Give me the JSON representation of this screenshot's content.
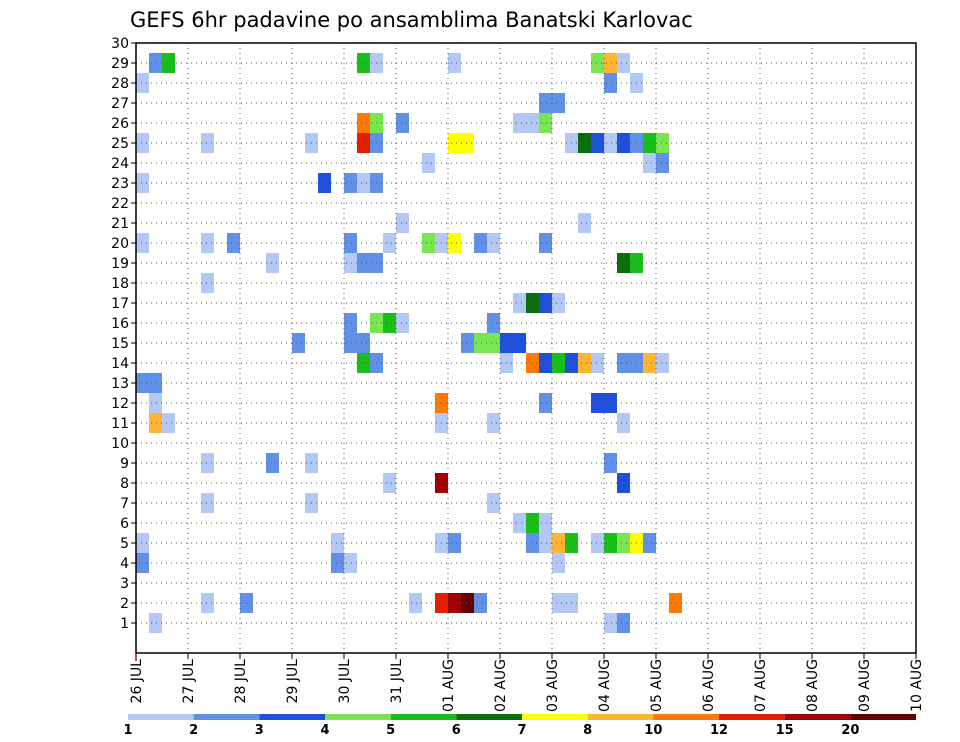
{
  "chart_data": {
    "type": "heatmap",
    "title": "GEFS 6hr padavine po ansamblima Banatski Karlovac",
    "x_tick_labels": [
      "26 JUL",
      "27 JUL",
      "28 JUL",
      "29 JUL",
      "30 JUL",
      "31 JUL",
      "01 AUG",
      "02 AUG",
      "03 AUG",
      "04 AUG",
      "05 AUG",
      "06 AUG",
      "07 AUG",
      "08 AUG",
      "09 AUG",
      "10 AUG"
    ],
    "x_range_steps": [
      0,
      60
    ],
    "y_tick_labels": [
      "1",
      "2",
      "3",
      "4",
      "5",
      "6",
      "7",
      "8",
      "9",
      "10",
      "11",
      "12",
      "13",
      "14",
      "15",
      "16",
      "17",
      "18",
      "19",
      "20",
      "21",
      "22",
      "23",
      "24",
      "25",
      "26",
      "27",
      "28",
      "29",
      "30"
    ],
    "y_range": [
      0,
      30
    ],
    "grid": true,
    "legend": {
      "position": "bottom",
      "boundaries": [
        "1",
        "2",
        "3",
        "4",
        "5",
        "6",
        "7",
        "8",
        "10",
        "12",
        "15",
        "20"
      ],
      "colors": [
        "#b4c8f5",
        "#6090e8",
        "#1e50dc",
        "#78e650",
        "#19be19",
        "#0a6e0a",
        "#ffff00",
        "#ffb432",
        "#ff7800",
        "#e61e00",
        "#a00000",
        "#640000"
      ]
    },
    "cells": [
      [
        1,
        29,
        2
      ],
      [
        2,
        29,
        5
      ],
      [
        17,
        29,
        5
      ],
      [
        18,
        29,
        1
      ],
      [
        24,
        29,
        1
      ],
      [
        35,
        29,
        4
      ],
      [
        36,
        29,
        8
      ],
      [
        37,
        29,
        1
      ],
      [
        0,
        28,
        1
      ],
      [
        36,
        28,
        2
      ],
      [
        38,
        28,
        1
      ],
      [
        31,
        27,
        2
      ],
      [
        32,
        27,
        2
      ],
      [
        17,
        26,
        9
      ],
      [
        18,
        26,
        4
      ],
      [
        20,
        26,
        2
      ],
      [
        29,
        26,
        1
      ],
      [
        30,
        26,
        1
      ],
      [
        31,
        26,
        4
      ],
      [
        0,
        25,
        1
      ],
      [
        5,
        25,
        1
      ],
      [
        13,
        25,
        1
      ],
      [
        17,
        25,
        10
      ],
      [
        18,
        25,
        2
      ],
      [
        24,
        25,
        7
      ],
      [
        25,
        25,
        7
      ],
      [
        33,
        25,
        1
      ],
      [
        34,
        25,
        6
      ],
      [
        35,
        25,
        3
      ],
      [
        36,
        25,
        1
      ],
      [
        37,
        25,
        3
      ],
      [
        38,
        25,
        2
      ],
      [
        39,
        25,
        5
      ],
      [
        40,
        25,
        4
      ],
      [
        22,
        24,
        1
      ],
      [
        39,
        24,
        1
      ],
      [
        40,
        24,
        2
      ],
      [
        0,
        23,
        1
      ],
      [
        14,
        23,
        3
      ],
      [
        16,
        23,
        2
      ],
      [
        17,
        23,
        1
      ],
      [
        18,
        23,
        2
      ],
      [
        20,
        21,
        1
      ],
      [
        34,
        21,
        1
      ],
      [
        0,
        20,
        1
      ],
      [
        5,
        20,
        1
      ],
      [
        7,
        20,
        2
      ],
      [
        16,
        20,
        2
      ],
      [
        19,
        20,
        1
      ],
      [
        22,
        20,
        4
      ],
      [
        23,
        20,
        1
      ],
      [
        24,
        20,
        7
      ],
      [
        26,
        20,
        2
      ],
      [
        27,
        20,
        1
      ],
      [
        31,
        20,
        2
      ],
      [
        10,
        19,
        1
      ],
      [
        16,
        19,
        1
      ],
      [
        17,
        19,
        2
      ],
      [
        18,
        19,
        2
      ],
      [
        37,
        19,
        6
      ],
      [
        38,
        19,
        5
      ],
      [
        5,
        18,
        1
      ],
      [
        29,
        17,
        1
      ],
      [
        30,
        17,
        6
      ],
      [
        31,
        17,
        3
      ],
      [
        32,
        17,
        1
      ],
      [
        16,
        16,
        2
      ],
      [
        18,
        16,
        4
      ],
      [
        19,
        16,
        5
      ],
      [
        20,
        16,
        1
      ],
      [
        27,
        16,
        2
      ],
      [
        12,
        15,
        2
      ],
      [
        16,
        15,
        2
      ],
      [
        17,
        15,
        2
      ],
      [
        25,
        15,
        2
      ],
      [
        26,
        15,
        4
      ],
      [
        27,
        15,
        4
      ],
      [
        28,
        15,
        3
      ],
      [
        29,
        15,
        3
      ],
      [
        17,
        14,
        5
      ],
      [
        18,
        14,
        2
      ],
      [
        28,
        14,
        1
      ],
      [
        30,
        14,
        9
      ],
      [
        31,
        14,
        3
      ],
      [
        32,
        14,
        5
      ],
      [
        33,
        14,
        3
      ],
      [
        34,
        14,
        8
      ],
      [
        35,
        14,
        1
      ],
      [
        37,
        14,
        2
      ],
      [
        38,
        14,
        2
      ],
      [
        39,
        14,
        8
      ],
      [
        40,
        14,
        1
      ],
      [
        0,
        13,
        2
      ],
      [
        1,
        13,
        2
      ],
      [
        1,
        12,
        1
      ],
      [
        23,
        12,
        9
      ],
      [
        31,
        12,
        2
      ],
      [
        35,
        12,
        3
      ],
      [
        36,
        12,
        3
      ],
      [
        1,
        11,
        8
      ],
      [
        2,
        11,
        1
      ],
      [
        23,
        11,
        1
      ],
      [
        27,
        11,
        1
      ],
      [
        37,
        11,
        1
      ],
      [
        5,
        9,
        1
      ],
      [
        10,
        9,
        2
      ],
      [
        13,
        9,
        1
      ],
      [
        36,
        9,
        2
      ],
      [
        19,
        8,
        1
      ],
      [
        23,
        8,
        11
      ],
      [
        37,
        8,
        3
      ],
      [
        5,
        7,
        1
      ],
      [
        13,
        7,
        1
      ],
      [
        27,
        7,
        1
      ],
      [
        29,
        6,
        1
      ],
      [
        30,
        6,
        5
      ],
      [
        31,
        6,
        1
      ],
      [
        0,
        5,
        1
      ],
      [
        15,
        5,
        1
      ],
      [
        23,
        5,
        1
      ],
      [
        24,
        5,
        2
      ],
      [
        30,
        5,
        2
      ],
      [
        31,
        5,
        1
      ],
      [
        32,
        5,
        8
      ],
      [
        33,
        5,
        5
      ],
      [
        35,
        5,
        1
      ],
      [
        36,
        5,
        5
      ],
      [
        37,
        5,
        4
      ],
      [
        38,
        5,
        7
      ],
      [
        39,
        5,
        2
      ],
      [
        0,
        4,
        2
      ],
      [
        15,
        4,
        2
      ],
      [
        16,
        4,
        1
      ],
      [
        32,
        4,
        1
      ],
      [
        5,
        2,
        1
      ],
      [
        8,
        2,
        2
      ],
      [
        21,
        2,
        1
      ],
      [
        23,
        2,
        10
      ],
      [
        24,
        2,
        11
      ],
      [
        25,
        2,
        12
      ],
      [
        26,
        2,
        2
      ],
      [
        32,
        2,
        1
      ],
      [
        33,
        2,
        1
      ],
      [
        41,
        2,
        9
      ],
      [
        1,
        1,
        1
      ],
      [
        36,
        1,
        1
      ],
      [
        37,
        1,
        2
      ]
    ]
  }
}
